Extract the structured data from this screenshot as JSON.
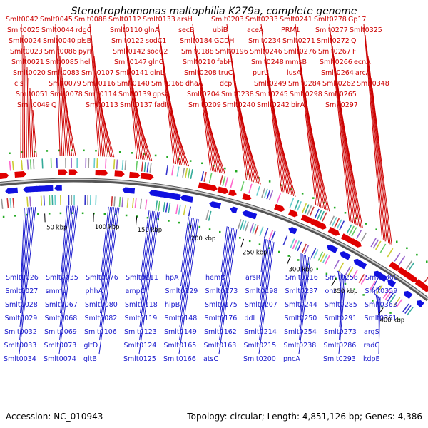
{
  "title": "Stenotrophomonas maltophilia K279a, complete genome",
  "footer": {
    "accession": "Accession: NC_010943",
    "summary": "Topology: circular; Length: 4,851,126 bp; Genes: 4,386"
  },
  "colors": {
    "forward_strand": "#e00000",
    "reverse_strand": "#1010e0",
    "top_label": "#cc0000",
    "bottom_label": "#1a1acc",
    "backbone": "#888888",
    "rna_marker": "#22aa22"
  },
  "scale_ticks": [
    {
      "label": "50 kbp"
    },
    {
      "label": "100 kbp"
    },
    {
      "label": "150 kbp"
    },
    {
      "label": "200 kbp"
    },
    {
      "label": "250 kbp"
    },
    {
      "label": "300 kbp"
    },
    {
      "label": "350 kbp"
    },
    {
      "label": "400 kbp"
    }
  ],
  "top_labels": [
    "Smlt0042",
    "Smlt0025",
    "Smlt0024",
    "Smlt0023",
    "Smlt0021",
    "Smlt0020",
    "cls",
    "Smlt0051",
    "Smlt0049",
    "Smlt0045",
    "Smlt0044",
    "Smlt0040",
    "Smlt0086",
    "Smlt0085",
    "Smlt0083",
    "Smlt0079",
    "Smlt0078",
    "Q",
    "Smlt0088",
    "rdgC",
    "plsB",
    "pyrF",
    "hel",
    "Smlt0107",
    "Smlt0116",
    "Smlt0114",
    "Smlt0113",
    "Smlt0112",
    "Smlt0110",
    "Smlt0122",
    "Smlt0142",
    "Smlt0147",
    "Smlt0141",
    "Smlt0140",
    "Smlt0139",
    "Smlt0137",
    "Smlt0133",
    "glnA",
    "sodC1",
    "sodC2",
    "glnG",
    "glnL",
    "Smlt0168",
    "gpsA",
    "fadI",
    "arsH",
    "secB",
    "Smlt0184",
    "Smlt0188",
    "Smlt0210",
    "Smlt0208",
    "dhaA",
    "Smlt0204",
    "Smlt0209",
    "Smlt0203",
    "ubiB",
    "GCDH",
    "Smlt0196",
    "fabH",
    "truC",
    "dcp",
    "Smlt0238",
    "Smlt0240",
    "Smlt0233",
    "aceA",
    "Smlt0234",
    "Smlt0246",
    "Smlt0248",
    "purU",
    "Smlt0249",
    "Smlt0245",
    "Smlt0242",
    "Smlt0241",
    "PRM1",
    "Smlt0271",
    "Smlt0276",
    "mmsB",
    "lusA",
    "Smlt0284",
    "Smlt0298",
    "birA",
    "Smlt0278",
    "Smlt0277",
    "Smlt0272",
    "Smlt0267",
    "Smlt0266",
    "Smlt0264",
    "Smlt0262",
    "Smlt0265",
    "Smlt0297",
    "Gp17",
    "Smlt0325",
    "Q",
    "F",
    "ecnA",
    "arcA",
    "Smlt0348"
  ],
  "bottom_labels": [
    "Smlt0026",
    "Smlt0027",
    "Smlt0028",
    "Smlt0029",
    "Smlt0032",
    "Smlt0033",
    "Smlt0034",
    "Smlt0035",
    "smmL",
    "Smlt0067",
    "Smlt0068",
    "Smlt0069",
    "Smlt0073",
    "Smlt0074",
    "Smlt0076",
    "phhA",
    "Smlt0080",
    "Smlt0082",
    "Smlt0106",
    "gltD",
    "gltB",
    "Smlt0111",
    "ampC",
    "Smlt0118",
    "Smlt0119",
    "Smlt0123",
    "Smlt0124",
    "Smlt0125",
    "hpA",
    "Smlt0129",
    "hipB",
    "Smlt0148",
    "Smlt0149",
    "Smlt0165",
    "Smlt0166",
    "hemD",
    "Smlt0173",
    "Smlt0175",
    "Smlt0176",
    "Smlt0162",
    "Smlt0163",
    "atsC",
    "arsR",
    "Smlt0198",
    "Smlt0207",
    "ddl",
    "Smlt0214",
    "Smlt0215",
    "Smlt0200",
    "Smlt0216",
    "Smlt0237",
    "Smlt0244",
    "Smlt0250",
    "Smlt0254",
    "Smlt0238",
    "pncA",
    "Smlt0258",
    "ohr",
    "Smlt0285",
    "Smlt0291",
    "Smlt0273",
    "Smlt0286",
    "Smlt0293",
    "Smlt0360",
    "Smlt0359",
    "Smlt0363",
    "Smlt0361",
    "argS",
    "radC",
    "kdpE"
  ]
}
